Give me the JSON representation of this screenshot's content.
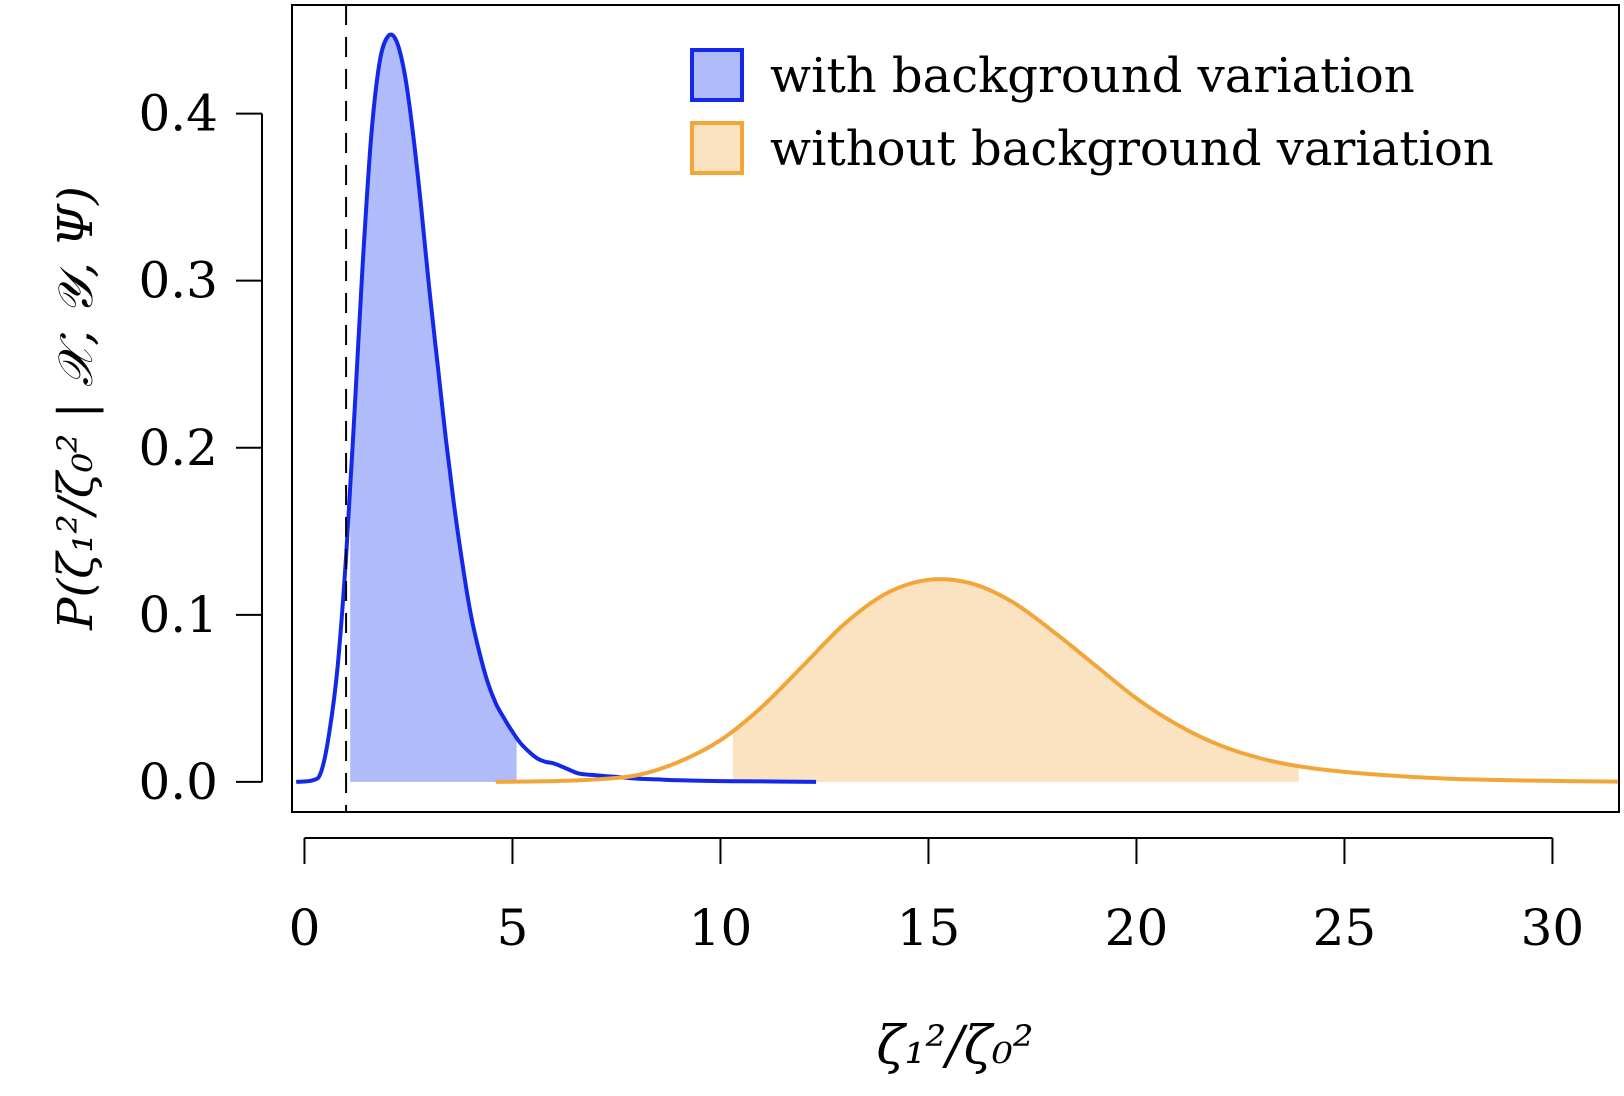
{
  "chart_data": {
    "type": "area",
    "xlabel": "ζ₁²/ζ₀²",
    "ylabel": "P(ζ₁²/ζ₀² | 𝒳, 𝒴, Ψ)",
    "xlim": [
      -0.3,
      31.6
    ],
    "ylim": [
      -0.018,
      0.465
    ],
    "x_ticks": [
      0,
      5,
      10,
      15,
      20,
      25,
      30
    ],
    "x_tick_labels": [
      "0",
      "5",
      "10",
      "15",
      "20",
      "25",
      "30"
    ],
    "y_ticks": [
      0.0,
      0.1,
      0.2,
      0.3,
      0.4
    ],
    "y_tick_labels": [
      "0.0",
      "0.1",
      "0.2",
      "0.3",
      "0.4"
    ],
    "reference_line": {
      "x": 1,
      "style": "dashed",
      "color": "#000000"
    },
    "legend_position": "top-right",
    "grid": false,
    "series": [
      {
        "name": "with background variation",
        "line_color": "#1429e8",
        "fill_color": "#b0bbf9",
        "shaded_interval": [
          1.1,
          5.1
        ],
        "x": [
          -0.2,
          0.2,
          0.4,
          0.6,
          0.8,
          1.0,
          1.2,
          1.4,
          1.6,
          1.8,
          2.0,
          2.2,
          2.4,
          2.6,
          2.8,
          3.0,
          3.2,
          3.4,
          3.6,
          3.8,
          4.0,
          4.2,
          4.4,
          4.6,
          4.8,
          5.0,
          5.2,
          5.4,
          5.6,
          5.8,
          6.0,
          6.3,
          6.6,
          7.0,
          7.5,
          8.0,
          8.5,
          9.0,
          10.0,
          11.0,
          12.3
        ],
        "y": [
          0.0,
          0.001,
          0.006,
          0.03,
          0.07,
          0.135,
          0.22,
          0.31,
          0.385,
          0.43,
          0.446,
          0.444,
          0.425,
          0.39,
          0.345,
          0.295,
          0.25,
          0.205,
          0.165,
          0.13,
          0.1,
          0.078,
          0.06,
          0.047,
          0.038,
          0.03,
          0.023,
          0.018,
          0.014,
          0.012,
          0.011,
          0.008,
          0.005,
          0.004,
          0.003,
          0.002,
          0.0015,
          0.001,
          0.0005,
          0.0003,
          0.0
        ]
      },
      {
        "name": "without background variation",
        "line_color": "#f2a63a",
        "fill_color": "#fbe3c2",
        "shaded_interval": [
          10.3,
          23.9
        ],
        "x": [
          4.6,
          6.0,
          7.0,
          8.0,
          9.0,
          10.0,
          11.0,
          12.0,
          13.0,
          14.0,
          15.0,
          16.0,
          17.0,
          18.0,
          19.0,
          20.0,
          21.0,
          22.0,
          23.0,
          24.0,
          25.0,
          26.0,
          27.0,
          28.0,
          29.0,
          30.0,
          31.0,
          31.6
        ],
        "y": [
          0.0,
          0.0005,
          0.0015,
          0.004,
          0.012,
          0.025,
          0.045,
          0.07,
          0.095,
          0.113,
          0.121,
          0.119,
          0.108,
          0.09,
          0.07,
          0.05,
          0.034,
          0.022,
          0.014,
          0.009,
          0.006,
          0.004,
          0.0025,
          0.0015,
          0.001,
          0.0006,
          0.0003,
          0.0002
        ]
      }
    ]
  }
}
